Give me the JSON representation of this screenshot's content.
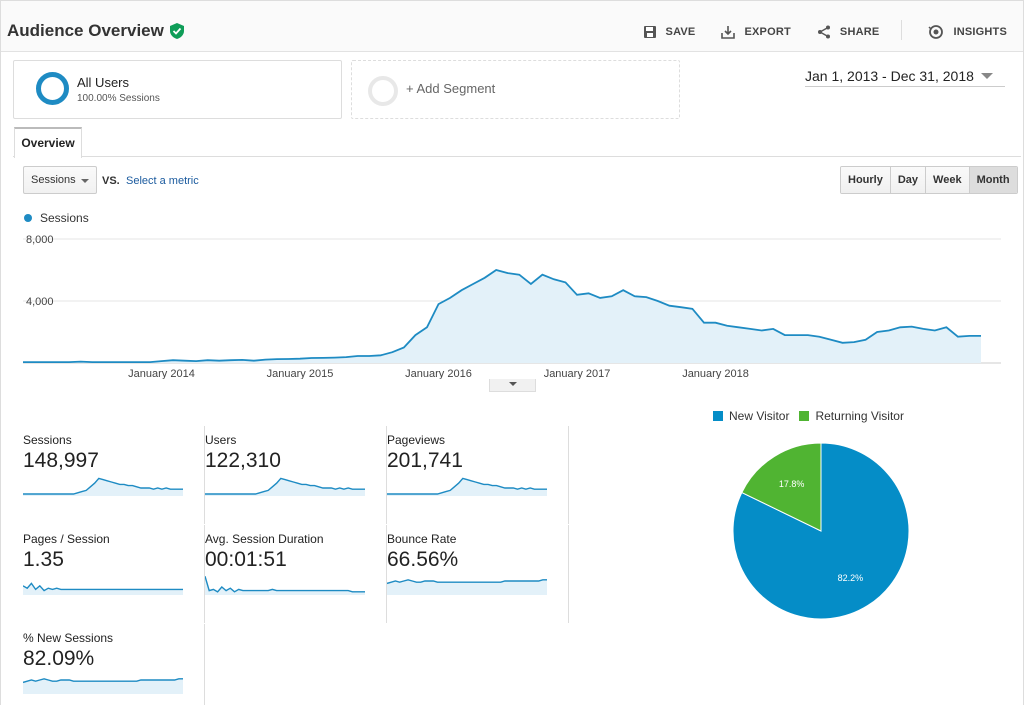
{
  "header": {
    "title": "Audience Overview",
    "actions": {
      "save": "SAVE",
      "export": "EXPORT",
      "share": "SHARE",
      "insights": "INSIGHTS"
    }
  },
  "segments": {
    "active": {
      "name": "All Users",
      "sub": "100.00% Sessions"
    },
    "add": "+ Add Segment"
  },
  "date_range": "Jan 1, 2013 - Dec 31, 2018",
  "tabs": [
    "Overview"
  ],
  "controls": {
    "metric": "Sessions",
    "vs": "VS.",
    "select_metric": "Select a metric",
    "granularity": [
      "Hourly",
      "Day",
      "Week",
      "Month"
    ],
    "active_granularity": "Month"
  },
  "colors": {
    "accent": "#1e8bc3",
    "new_visitor": "#058dc7",
    "returning_visitor": "#50b432"
  },
  "chart_data": [
    {
      "type": "area",
      "series": [
        {
          "name": "Sessions",
          "values": [
            60,
            60,
            60,
            60,
            60,
            90,
            60,
            60,
            60,
            60,
            60,
            60,
            120,
            180,
            150,
            120,
            180,
            150,
            180,
            200,
            150,
            220,
            250,
            260,
            280,
            320,
            330,
            350,
            380,
            450,
            450,
            500,
            700,
            1000,
            1800,
            2300,
            3800,
            4200,
            4700,
            5100,
            5500,
            6000,
            5800,
            5700,
            5100,
            5700,
            5400,
            5200,
            4400,
            4500,
            4200,
            4300,
            4700,
            4300,
            4250,
            4000,
            3700,
            3600,
            3500,
            2600,
            2600,
            2400,
            2300,
            2200,
            2100,
            2200,
            1800,
            1800,
            1800,
            1700,
            1500,
            1300,
            1350,
            1500,
            2000,
            2100,
            2300,
            2350,
            2200,
            2100,
            2300,
            1700,
            1750,
            1750
          ]
        }
      ],
      "x_labels": [
        "January 2014",
        "January 2015",
        "January 2016",
        "January 2017",
        "January 2018"
      ],
      "y_ticks": [
        "8,000",
        "4,000"
      ],
      "ylim": [
        0,
        8000
      ]
    },
    {
      "type": "pie",
      "series": [
        {
          "name": "New Visitor",
          "value": 82.2,
          "label": "82.2%"
        },
        {
          "name": "Returning Visitor",
          "value": 17.8,
          "label": "17.8%"
        }
      ]
    }
  ],
  "metrics": [
    {
      "label": "Sessions",
      "value": "148,997"
    },
    {
      "label": "Users",
      "value": "122,310"
    },
    {
      "label": "Pageviews",
      "value": "201,741"
    },
    {
      "label": "Pages / Session",
      "value": "1.35"
    },
    {
      "label": "Avg. Session Duration",
      "value": "00:01:51"
    },
    {
      "label": "Bounce Rate",
      "value": "66.56%"
    },
    {
      "label": "% New Sessions",
      "value": "82.09%"
    }
  ],
  "icons": [
    "verified-shield-icon",
    "save-icon",
    "export-icon",
    "share-icon",
    "insights-icon"
  ]
}
